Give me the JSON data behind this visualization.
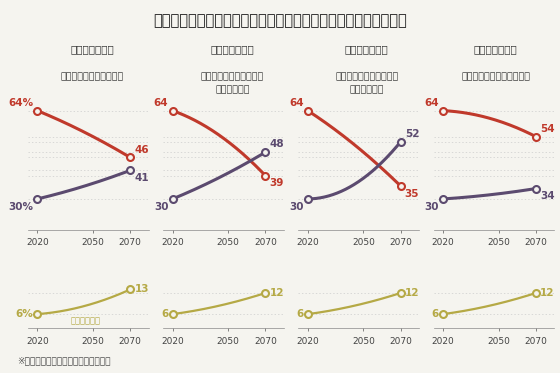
{
  "title": "２０７０年までの米国の宗教構成に関する予想の４つのシナリオ",
  "footnote": "※ピュー研究所のグラフを一部加工。",
  "scenarios": [
    {
      "label1": "【シナリオ１】",
      "label2": "宗教的転向が一定の場合",
      "christian": [
        64,
        54,
        46
      ],
      "nonreligious": [
        30,
        36,
        41
      ],
      "other": [
        6,
        9,
        13
      ],
      "years": [
        2020,
        2050,
        2070
      ],
      "chr_left_label": "64%",
      "non_left_label": "30%",
      "oth_left_label": "6%",
      "chr_right_label": "46",
      "non_right_label": "41",
      "oth_right_label": "13"
    },
    {
      "label1": "【シナリオ２】",
      "label2": "制限付きで宗教的転向が\n増加する場合",
      "christian": [
        64,
        52,
        39
      ],
      "nonreligious": [
        30,
        40,
        48
      ],
      "other": [
        6,
        9,
        12
      ],
      "years": [
        2020,
        2050,
        2070
      ],
      "chr_left_label": "64",
      "non_left_label": "30",
      "oth_left_label": "6",
      "chr_right_label": "39",
      "non_right_label": "48",
      "oth_right_label": "12"
    },
    {
      "label1": "【シナリオ３】",
      "label2": "制限なしで宗教的転向が\n増加する場合",
      "christian": [
        64,
        48,
        35
      ],
      "nonreligious": [
        30,
        38,
        52
      ],
      "other": [
        6,
        9,
        12
      ],
      "years": [
        2020,
        2050,
        2070
      ],
      "chr_left_label": "64",
      "non_left_label": "30",
      "oth_left_label": "6",
      "chr_right_label": "35",
      "non_right_label": "52",
      "oth_right_label": "12"
    },
    {
      "label1": "【シナリオ４】",
      "label2": "宗教的転向が停止した場合",
      "christian": [
        64,
        60,
        54
      ],
      "nonreligious": [
        30,
        32,
        34
      ],
      "other": [
        6,
        9,
        12
      ],
      "years": [
        2020,
        2050,
        2070
      ],
      "chr_left_label": "64",
      "non_left_label": "30",
      "oth_left_label": "6",
      "chr_right_label": "54",
      "non_right_label": "34",
      "oth_right_label": "12"
    }
  ],
  "christian_color": "#c0392b",
  "nonreligious_color": "#5b4a6f",
  "other_color": "#b5a945",
  "bg_color": "#f5f4ef",
  "title_fontsize": 10.5,
  "label1_fontsize": 7.5,
  "label2_fontsize": 6.8,
  "tick_fontsize": 6.5,
  "anno_fontsize": 7.5,
  "other_label": "その他の宗教",
  "upper_ylim": [
    18,
    75
  ],
  "lower_ylim": [
    2,
    17
  ]
}
